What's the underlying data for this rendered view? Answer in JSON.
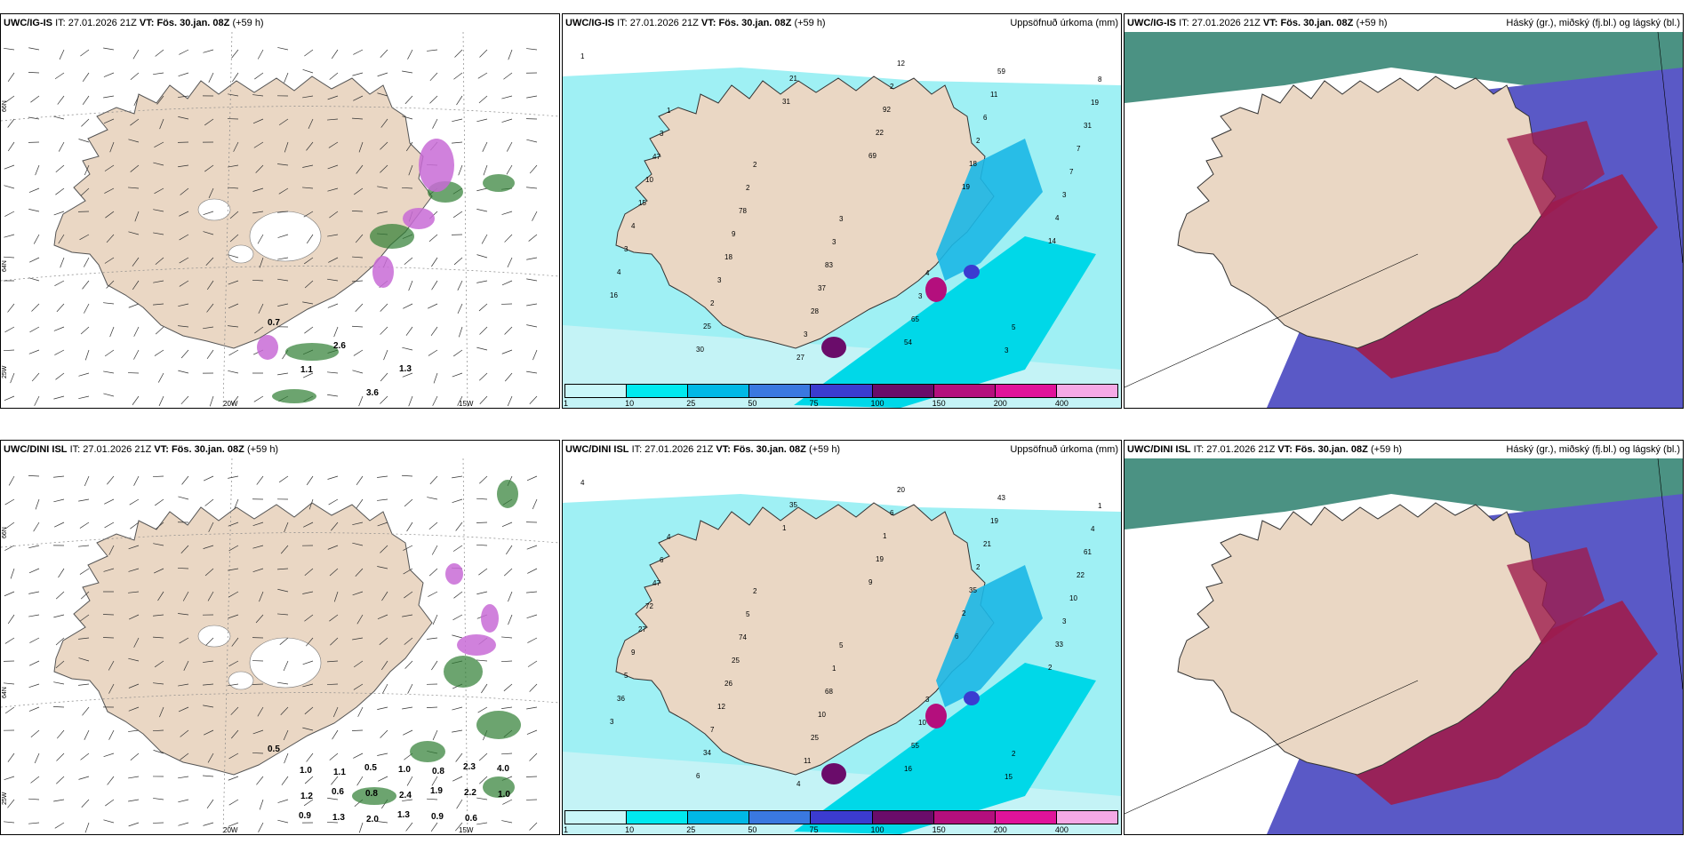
{
  "rows": [
    {
      "model": "UWC/IG-IS",
      "it_label": "IT:",
      "it_value": "27.01.2026 21Z",
      "vt_label": "VT:",
      "vt_value": "Fös. 30.jan. 08Z",
      "lead": "(+59 h)",
      "panels": [
        {
          "kind": "wind",
          "right_title": ""
        },
        {
          "kind": "precip",
          "right_title": "Uppsöfnuð úrkoma (mm)"
        },
        {
          "kind": "cloud",
          "right_title": "Háský (gr.), miðský (fj.bl.) og lágský (bl.)"
        }
      ]
    },
    {
      "model": "UWC/DINI ISL",
      "it_label": "IT:",
      "it_value": "27.01.2026 21Z",
      "vt_label": "VT:",
      "vt_value": "Fös. 30.jan. 08Z",
      "lead": "(+59 h)",
      "panels": [
        {
          "kind": "wind",
          "right_title": ""
        },
        {
          "kind": "precip",
          "right_title": "Uppsöfnuð úrkoma (mm)"
        },
        {
          "kind": "cloud",
          "right_title": "Háský (gr.), miðský (fj.bl.) og lágský (bl.)"
        }
      ]
    }
  ],
  "axes": {
    "lon_labels": [
      "20W",
      "15W"
    ],
    "lat_labels": [
      "66N",
      "64N",
      "25W"
    ]
  },
  "colorbar": {
    "labels": [
      "1",
      "10",
      "25",
      "50",
      "75",
      "100",
      "150",
      "200",
      "400"
    ],
    "colors": [
      "#c9f7f9",
      "#00e9ef",
      "#00b8e6",
      "#3a78e0",
      "#3b3bd0",
      "#6a0c6a",
      "#b40f7d",
      "#e0139a",
      "#f5a9e6"
    ]
  },
  "colors": {
    "land": "#ead7c4",
    "sea_precip": "#c4f3f6",
    "cloud_low": "#5a59c6",
    "cloud_mid": "#9e1c4c",
    "cloud_high": "#2c7f6d"
  },
  "precip_numbers": {
    "row0": [
      "1",
      "1",
      "2",
      "3",
      "4",
      "5",
      "8",
      "3",
      "2",
      "3",
      "3",
      "3",
      "19",
      "47",
      "78",
      "83",
      "65",
      "59",
      "31",
      "10",
      "9",
      "37",
      "54",
      "11",
      "7",
      "15",
      "18",
      "28",
      "12",
      "6",
      "7",
      "4",
      "3",
      "3",
      "2",
      "2",
      "3",
      "3",
      "2",
      "27",
      "92",
      "18",
      "4",
      "4",
      "25",
      "21",
      "22",
      "19",
      "14",
      "16",
      "30",
      "31",
      "69"
    ],
    "row1": [
      "4",
      "4",
      "2",
      "5",
      "3",
      "2",
      "1",
      "6",
      "5",
      "1",
      "10",
      "15",
      "4",
      "47",
      "74",
      "68",
      "55",
      "43",
      "61",
      "72",
      "25",
      "10",
      "16",
      "19",
      "22",
      "27",
      "26",
      "25",
      "20",
      "21",
      "10",
      "9",
      "12",
      "11",
      "6",
      "2",
      "3",
      "5",
      "7",
      "4",
      "1",
      "35",
      "33",
      "36",
      "34",
      "35",
      "19",
      "2",
      "2",
      "3",
      "6",
      "1",
      "9",
      "6"
    ]
  },
  "wind_numbers": {
    "row0": [
      "0.7",
      "1.1",
      "2.6",
      "3.6",
      "1.3"
    ],
    "row1": [
      "0.5",
      "1.2",
      "1.1",
      "2.0",
      "2.4",
      "0.8",
      "0.6",
      "1.0",
      "1.0",
      "1.3",
      "0.8",
      "1.0",
      "0.9",
      "2.2",
      "4.0",
      "0.9",
      "0.6",
      "0.5",
      "1.3",
      "1.9",
      "2.3"
    ]
  }
}
